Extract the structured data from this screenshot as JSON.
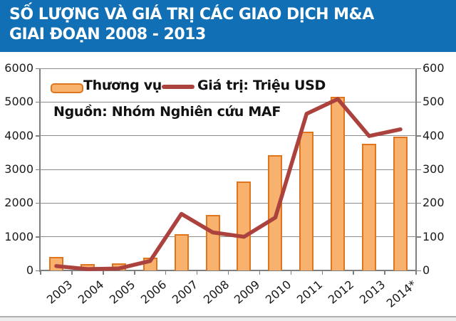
{
  "header": {
    "title_line1": "SỐ LƯỢNG VÀ GIÁ TRỊ CÁC GIAO DỊCH M&A",
    "title_line2": "GIAI ĐOẠN 2008 - 2013"
  },
  "legend": {
    "bars_label": "Thương vụ",
    "line_label": "Giá trị: Triệu USD"
  },
  "source_note": "Nguồn: Nhóm Nghiên cứu MAF",
  "colors": {
    "banner_blue": "#1170B5",
    "bar_fill": "#F9B26D",
    "bar_border": "#E0751F",
    "line_red": "#AC423E",
    "grid_gray": "#8C8C8C",
    "axis_gray": "#7F7F7F",
    "label_color": "#1a1a1a"
  },
  "chart_data": {
    "type": "bar",
    "subtype": "combo bar+line, dual axis",
    "title": "SỐ LƯỢNG VÀ GIÁ TRỊ CÁC GIAO DỊCH M&A GIAI ĐOẠN 2008 - 2013",
    "categories": [
      "2003",
      "2004",
      "2005",
      "2006",
      "2007",
      "2008",
      "2009",
      "2010",
      "2011",
      "2012",
      "2013",
      "2014*"
    ],
    "series": [
      {
        "name": "Thương vụ",
        "type": "bar",
        "axis": "left",
        "values": [
          400,
          190,
          210,
          370,
          1070,
          1650,
          2640,
          3430,
          4130,
          5160,
          3760,
          3980
        ]
      },
      {
        "name": "Giá trị: Triệu USD",
        "type": "line",
        "axis": "right",
        "values": [
          13,
          4,
          6,
          28,
          168,
          113,
          100,
          157,
          465,
          509,
          399,
          419
        ]
      }
    ],
    "left_axis": {
      "ylim": [
        0,
        6000
      ],
      "ticks": [
        0,
        1000,
        2000,
        3000,
        4000,
        5000,
        6000
      ]
    },
    "right_axis": {
      "ylim": [
        0,
        600
      ],
      "ticks": [
        0,
        100,
        200,
        300,
        400,
        500,
        600
      ]
    },
    "grid": "horizontal gridlines on",
    "legend_position": "top-left inside plot",
    "annotation": "Nguồn: Nhóm Nghiên cứu MAF"
  }
}
